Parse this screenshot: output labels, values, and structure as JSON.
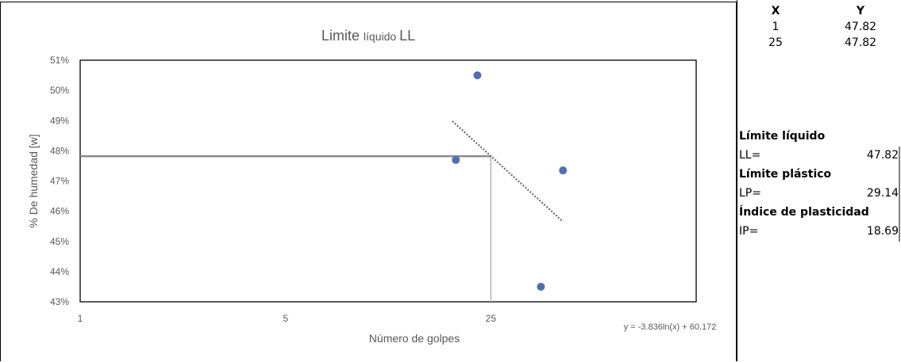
{
  "chart_data": {
    "type": "scatter",
    "title": "Limite líquido LL",
    "title_main": "Limite",
    "title_sub": "líquido",
    "title_end": "LL",
    "xlabel": "Número de golpes",
    "ylabel": "% De humedad [w]",
    "x_scale": "log",
    "xlim": [
      1,
      125
    ],
    "ylim": [
      43,
      51
    ],
    "x_ticks": [
      {
        "value": 1,
        "label": "1"
      },
      {
        "value": 5,
        "label": "5"
      },
      {
        "value": 25,
        "label": "25"
      }
    ],
    "y_ticks": [
      {
        "value": 43,
        "label": "43%"
      },
      {
        "value": 44,
        "label": "44%"
      },
      {
        "value": 45,
        "label": "45%"
      },
      {
        "value": 46,
        "label": "46%"
      },
      {
        "value": 47,
        "label": "47%"
      },
      {
        "value": 48,
        "label": "48%"
      },
      {
        "value": 49,
        "label": "49%"
      },
      {
        "value": 50,
        "label": "50%"
      },
      {
        "value": 51,
        "label": "51%"
      }
    ],
    "points": [
      {
        "x": 19,
        "y": 47.7
      },
      {
        "x": 22.5,
        "y": 50.5
      },
      {
        "x": 37,
        "y": 43.5
      },
      {
        "x": 44,
        "y": 47.35
      }
    ],
    "trendline": {
      "equation": "y = -3.836ln(x) + 60.172",
      "a": -3.836,
      "b": 60.172,
      "x_from": 18.5,
      "x_to": 44
    },
    "reference": {
      "x": 25,
      "y": 47.82
    },
    "colors": {
      "point": "#4f6fb0",
      "trend": "#6b6b6b",
      "ref_h": "#808080",
      "ref_v": "#b0b0b0"
    }
  },
  "side_table": {
    "headers": {
      "x": "X",
      "y": "Y"
    },
    "rows": [
      {
        "x": "1",
        "y": "47.82"
      },
      {
        "x": "25",
        "y": "47.82"
      }
    ]
  },
  "results": {
    "ll_title": "Límite líquido",
    "ll_label": "LL=",
    "ll_value": "47.82",
    "lp_title": "Límite plástico",
    "lp_label": "LP=",
    "lp_value": "29.14",
    "ip_title": "Índice de plasticidad",
    "ip_label": "IP=",
    "ip_value": "18.69"
  }
}
